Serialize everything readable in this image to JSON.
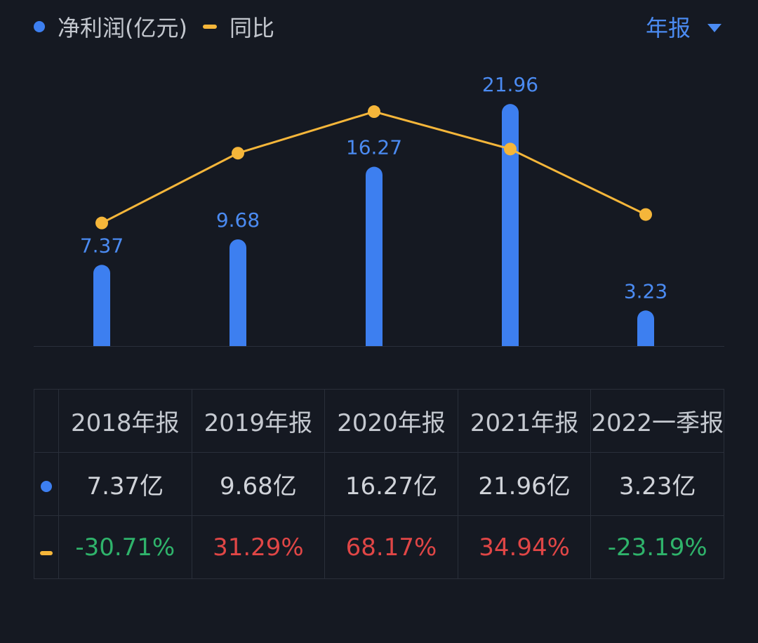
{
  "legend": {
    "series1_label": "净利润(亿元)",
    "series2_label": "同比"
  },
  "period_selector": {
    "label": "年报"
  },
  "colors": {
    "bar": "#3d7ff0",
    "line": "#f5b63a",
    "bar_label": "#4b8bf2",
    "up": "#e04646",
    "down": "#2fb36b",
    "period": "#4b8bf2"
  },
  "chart_data": {
    "type": "bar",
    "categories": [
      "2018年报",
      "2019年报",
      "2020年报",
      "2021年报",
      "2022一季报"
    ],
    "series": [
      {
        "name": "净利润(亿元)",
        "type": "bar",
        "values": [
          7.37,
          9.68,
          16.27,
          21.96,
          3.23
        ],
        "labels": [
          "7.37",
          "9.68",
          "16.27",
          "21.96",
          "3.23"
        ]
      },
      {
        "name": "同比",
        "type": "line",
        "values": [
          -30.71,
          31.29,
          68.17,
          34.94,
          -23.19
        ]
      }
    ],
    "ylim": [
      0,
      23.5
    ],
    "yoy_ylim": [
      -140,
      90
    ],
    "legend": "top-left"
  },
  "table": {
    "headers": [
      "2018年报",
      "2019年报",
      "2020年报",
      "2021年报",
      "2022一季报"
    ],
    "values": [
      "7.37亿",
      "9.68亿",
      "16.27亿",
      "21.96亿",
      "3.23亿"
    ],
    "yoy": [
      "-30.71%",
      "31.29%",
      "68.17%",
      "34.94%",
      "-23.19%"
    ]
  }
}
